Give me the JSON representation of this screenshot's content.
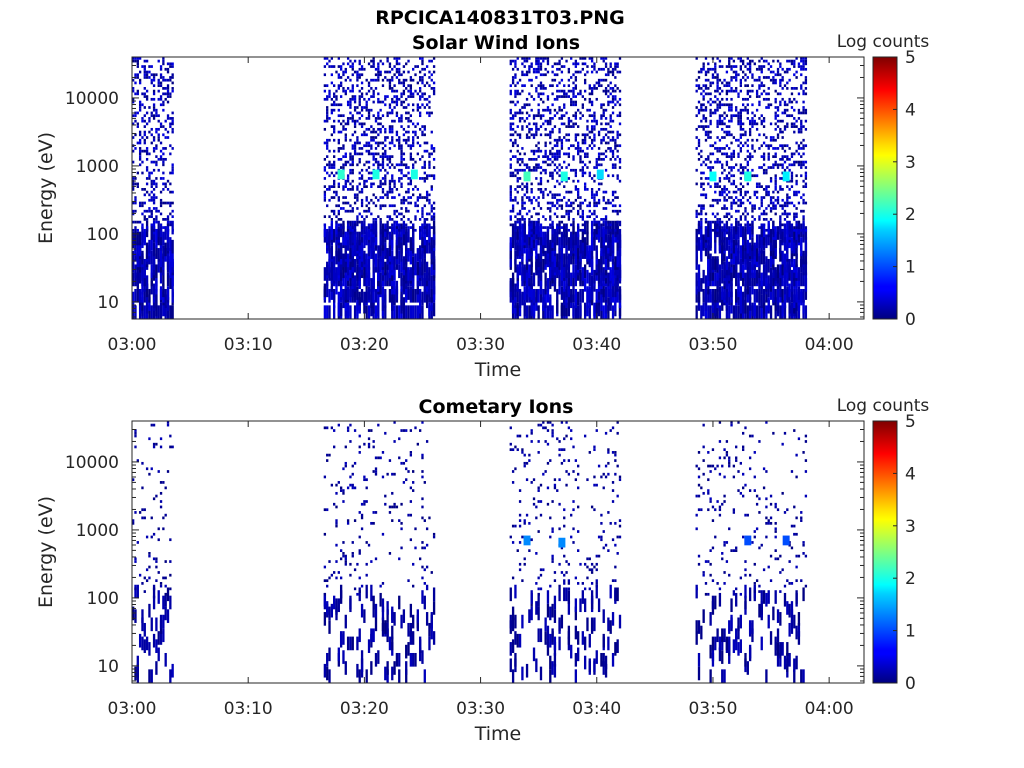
{
  "figure": {
    "title": "RPCICA140831T03.PNG"
  },
  "chart_data": [
    {
      "type": "heatmap",
      "title": "Solar Wind Ions",
      "xlabel": "Time",
      "ylabel": "Energy (eV)",
      "y_scale": "log",
      "xlim": [
        "03:00",
        "04:03"
      ],
      "ylim": [
        5.6,
        40000
      ],
      "xticks": [
        "03:00",
        "03:10",
        "03:20",
        "03:30",
        "03:40",
        "03:50",
        "04:00"
      ],
      "yticks": [
        10,
        100,
        1000,
        10000
      ],
      "ytick_labels": [
        "10",
        "100",
        "1000",
        "10000"
      ],
      "colorbar": {
        "label": "Log counts",
        "range": [
          0,
          5
        ],
        "ticks": [
          "0",
          "1",
          "2",
          "3",
          "4",
          "5"
        ],
        "colormap": "jet"
      },
      "grid": false,
      "data_windows": [
        {
          "start": "03:00",
          "end": "03:03.5"
        },
        {
          "start": "03:16.5",
          "end": "03:26"
        },
        {
          "start": "03:32.5",
          "end": "03:42"
        },
        {
          "start": "03:48.5",
          "end": "03:58"
        }
      ],
      "peaks": [
        {
          "time": "03:18",
          "energy_eV": 750,
          "log_counts": 2.1
        },
        {
          "time": "03:21",
          "energy_eV": 750,
          "log_counts": 2.0
        },
        {
          "time": "03:24.3",
          "energy_eV": 750,
          "log_counts": 2.0
        },
        {
          "time": "03:34",
          "energy_eV": 700,
          "log_counts": 2.2
        },
        {
          "time": "03:37.2",
          "energy_eV": 700,
          "log_counts": 2.0
        },
        {
          "time": "03:40.3",
          "energy_eV": 750,
          "log_counts": 1.7
        },
        {
          "time": "03:50",
          "energy_eV": 700,
          "log_counts": 1.9
        },
        {
          "time": "03:53",
          "energy_eV": 700,
          "log_counts": 2.0
        },
        {
          "time": "03:56.3",
          "energy_eV": 700,
          "log_counts": 1.8
        }
      ],
      "background_log_counts": [
        0,
        0.5
      ]
    },
    {
      "type": "heatmap",
      "title": "Cometary Ions",
      "xlabel": "Time",
      "ylabel": "Energy (eV)",
      "y_scale": "log",
      "xlim": [
        "03:00",
        "04:03"
      ],
      "ylim": [
        5.6,
        40000
      ],
      "xticks": [
        "03:00",
        "03:10",
        "03:20",
        "03:30",
        "03:40",
        "03:50",
        "04:00"
      ],
      "yticks": [
        10,
        100,
        1000,
        10000
      ],
      "ytick_labels": [
        "10",
        "100",
        "1000",
        "10000"
      ],
      "colorbar": {
        "label": "Log counts",
        "range": [
          0,
          5
        ],
        "ticks": [
          "0",
          "1",
          "2",
          "3",
          "4",
          "5"
        ],
        "colormap": "jet"
      },
      "grid": false,
      "data_windows": [
        {
          "start": "03:00",
          "end": "03:03.5"
        },
        {
          "start": "03:16.5",
          "end": "03:26"
        },
        {
          "start": "03:32.5",
          "end": "03:42"
        },
        {
          "start": "03:48.5",
          "end": "03:58"
        }
      ],
      "peaks": [
        {
          "time": "03:34",
          "energy_eV": 700,
          "log_counts": 1.3
        },
        {
          "time": "03:37",
          "energy_eV": 650,
          "log_counts": 1.3
        },
        {
          "time": "03:53",
          "energy_eV": 700,
          "log_counts": 1.0
        },
        {
          "time": "03:56.3",
          "energy_eV": 700,
          "log_counts": 1.0
        }
      ],
      "background_log_counts": [
        0,
        0.3
      ]
    }
  ]
}
